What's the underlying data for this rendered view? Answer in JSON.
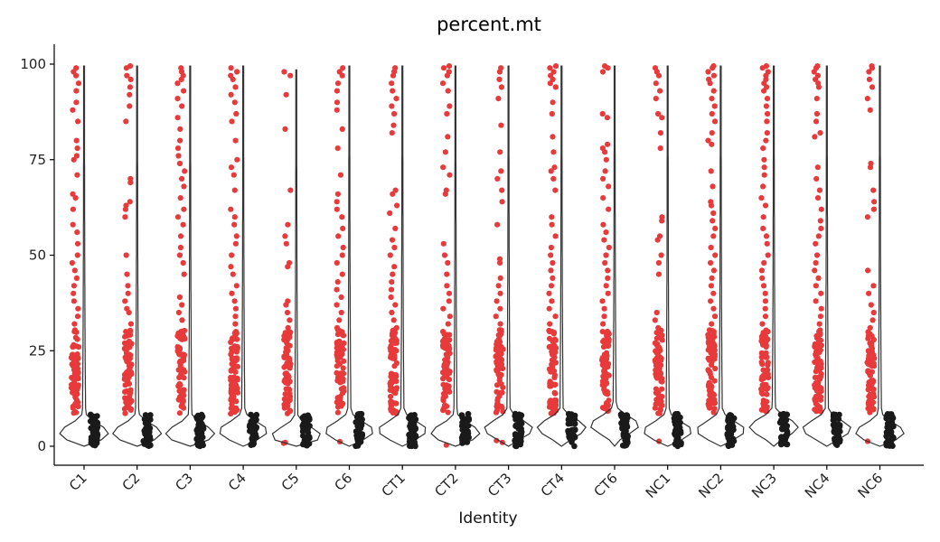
{
  "chart_data": {
    "type": "violin",
    "title": "percent.mt",
    "xlabel": "Identity",
    "ylabel": "",
    "ylim": [
      0,
      100
    ],
    "yticks": [
      0,
      25,
      50,
      75,
      100
    ],
    "categories": [
      "C1",
      "C2",
      "C3",
      "C4",
      "C5",
      "C6",
      "CT1",
      "CT2",
      "CT3",
      "CT4",
      "CT6",
      "NC1",
      "NC2",
      "NC3",
      "NC4",
      "NC6"
    ],
    "points_color": "#e83a3a",
    "violin_color": "#333333",
    "bulk_point_color": "#1a1a1a",
    "series": [
      {
        "category": "C1",
        "median": 3.5,
        "max": 99.5,
        "outliers": [
          99,
          98,
          97,
          95,
          93,
          90,
          88,
          85,
          80,
          78,
          76,
          75,
          71,
          66,
          65,
          62,
          58,
          56,
          53,
          50,
          48,
          46,
          44,
          42,
          40,
          38,
          36,
          34,
          32,
          30,
          28,
          26,
          24,
          22,
          20,
          18,
          16,
          14,
          12,
          10
        ]
      },
      {
        "category": "C2",
        "median": 3.5,
        "max": 99.5,
        "outliers": [
          99.5,
          99,
          97,
          96,
          94,
          92,
          89,
          85,
          70,
          69,
          64,
          63,
          62,
          60,
          50,
          45,
          42,
          40,
          38,
          36,
          35,
          32,
          30,
          27,
          25,
          23,
          22,
          20,
          18,
          16,
          14,
          12,
          10
        ]
      },
      {
        "category": "C3",
        "median": 3.3,
        "max": 99.5,
        "outliers": [
          99,
          98,
          97,
          96,
          95,
          93,
          91,
          89,
          86,
          83,
          80,
          78,
          76,
          74,
          72,
          70,
          68,
          65,
          62,
          60,
          58,
          55,
          52,
          50,
          48,
          45,
          39,
          37,
          35,
          33,
          30,
          28,
          26,
          24,
          22,
          20,
          18,
          16,
          14,
          12,
          10
        ]
      },
      {
        "category": "C4",
        "median": 4.0,
        "max": 99.5,
        "outliers": [
          99,
          98,
          97,
          96,
          94,
          92,
          90,
          87,
          85,
          80,
          75,
          73,
          71,
          67,
          62,
          60,
          58,
          55,
          53,
          50,
          47,
          45,
          42,
          40,
          38,
          36,
          34,
          32,
          30,
          28,
          26,
          24,
          22,
          20,
          18,
          16,
          14,
          12,
          10
        ]
      },
      {
        "category": "C5",
        "median": 2.8,
        "max": 98.5,
        "outliers": [
          98,
          97,
          92,
          83,
          67,
          58,
          55,
          53,
          48,
          47,
          38,
          37,
          35,
          33,
          31,
          29,
          27,
          25,
          23,
          21,
          19,
          17,
          15,
          13,
          11,
          1,
          0.8
        ]
      },
      {
        "category": "C6",
        "median": 4.0,
        "max": 99.5,
        "outliers": [
          99,
          98,
          97,
          95,
          93,
          90,
          88,
          83,
          78,
          71,
          66,
          64,
          62,
          60,
          57,
          55,
          52,
          50,
          48,
          45,
          43,
          41,
          39,
          37,
          35,
          33,
          31,
          29,
          27,
          25,
          23,
          21,
          19,
          17,
          15,
          13,
          11,
          1.2
        ]
      },
      {
        "category": "CT1",
        "median": 4.2,
        "max": 99.5,
        "outliers": [
          99,
          98,
          97,
          95,
          93,
          91,
          89,
          87,
          84,
          82,
          67,
          66,
          63,
          61,
          57,
          54,
          52,
          50,
          47,
          45,
          43,
          41,
          39,
          37,
          35,
          33,
          31,
          29,
          27,
          25,
          23,
          21,
          19,
          17,
          15,
          13,
          11
        ]
      },
      {
        "category": "CT2",
        "median": 3.5,
        "max": 99.5,
        "outliers": [
          99.5,
          99,
          98,
          97,
          95,
          93,
          89,
          87,
          81,
          77,
          73,
          71,
          67,
          66,
          53,
          50,
          48,
          45,
          42,
          40,
          38,
          36,
          34,
          32,
          30,
          28,
          26,
          24,
          22,
          20,
          18,
          16,
          14,
          12,
          10,
          0.3
        ]
      },
      {
        "category": "CT3",
        "median": 4.5,
        "max": 99.5,
        "outliers": [
          99,
          98,
          96,
          94,
          91,
          84,
          77,
          72,
          70,
          67,
          64,
          58,
          49,
          48,
          44,
          42,
          40,
          38,
          36,
          34,
          32,
          30,
          28,
          26,
          24,
          22,
          20,
          18,
          16,
          14,
          12,
          10,
          1.5,
          1
        ]
      },
      {
        "category": "CT4",
        "median": 4.8,
        "max": 99.5,
        "outliers": [
          99.5,
          99,
          98,
          97,
          96,
          95,
          94,
          90,
          87,
          81,
          77,
          73,
          72,
          70,
          67,
          60,
          58,
          55,
          52,
          50,
          48,
          46,
          44,
          42,
          40,
          38,
          36,
          34,
          32,
          30,
          28,
          26,
          24,
          22,
          20,
          18,
          16,
          14,
          12,
          10
        ]
      },
      {
        "category": "CT6",
        "median": 5.5,
        "max": 99.5,
        "outliers": [
          99.5,
          99,
          98,
          87,
          86,
          79,
          78,
          77,
          75,
          72,
          70,
          68,
          65,
          62,
          58,
          56,
          54,
          52,
          50,
          48,
          46,
          44,
          42,
          40,
          38,
          36,
          34,
          32,
          30,
          28,
          26,
          24,
          22,
          20,
          18,
          16,
          14,
          12,
          10
        ]
      },
      {
        "category": "NC1",
        "median": 4.0,
        "max": 99.5,
        "outliers": [
          99,
          98,
          97,
          95,
          93,
          91,
          87,
          86,
          82,
          78,
          60,
          59,
          55,
          54,
          50,
          48,
          45,
          35,
          33,
          31,
          29,
          27,
          25,
          23,
          21,
          19,
          17,
          15,
          13,
          11,
          1.3
        ]
      },
      {
        "category": "NC2",
        "median": 4.2,
        "max": 99.5,
        "outliers": [
          99.5,
          99,
          98,
          97,
          96,
          95,
          93,
          91,
          89,
          87,
          85,
          82,
          80,
          79,
          72,
          68,
          64,
          63,
          61,
          59,
          57,
          55,
          52,
          50,
          48,
          46,
          44,
          42,
          40,
          38,
          36,
          34,
          32,
          30,
          28,
          26,
          24,
          22,
          20,
          18,
          16,
          14,
          12,
          10
        ]
      },
      {
        "category": "NC3",
        "median": 5.0,
        "max": 99.5,
        "outliers": [
          99.5,
          99,
          98,
          97,
          96,
          95,
          94,
          93,
          91,
          89,
          87,
          85,
          82,
          80,
          78,
          75,
          73,
          71,
          68,
          65,
          63,
          60,
          57,
          55,
          53,
          50,
          48,
          46,
          44,
          42,
          40,
          38,
          36,
          34,
          32,
          30,
          28,
          26,
          24,
          22,
          20,
          18,
          16,
          14,
          12,
          10
        ]
      },
      {
        "category": "NC4",
        "median": 4.5,
        "max": 99.5,
        "outliers": [
          99.5,
          99,
          98,
          97,
          96,
          95,
          94,
          91,
          87,
          85,
          82,
          81,
          73,
          70,
          67,
          65,
          62,
          59,
          57,
          55,
          53,
          50,
          48,
          46,
          44,
          42,
          40,
          38,
          36,
          34,
          32,
          30,
          28,
          26,
          24,
          22,
          20,
          18,
          16,
          14,
          12,
          10
        ]
      },
      {
        "category": "NC6",
        "median": 3.7,
        "max": 99.5,
        "outliers": [
          99.5,
          99,
          98,
          96,
          94,
          91,
          88,
          74,
          73,
          67,
          64,
          62,
          60,
          46,
          42,
          40,
          37,
          35,
          33,
          31,
          29,
          27,
          25,
          23,
          21,
          19,
          17,
          15,
          13,
          11,
          1.3
        ]
      }
    ]
  }
}
